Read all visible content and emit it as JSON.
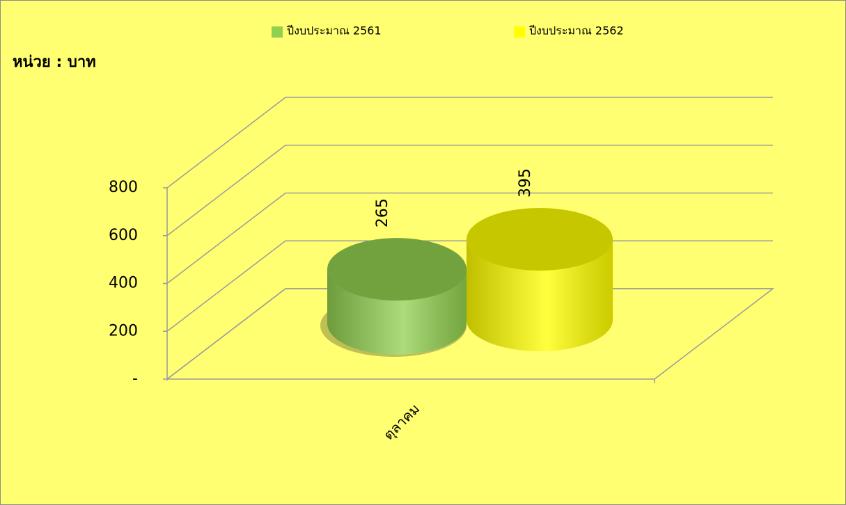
{
  "chart_data": {
    "type": "bar3d",
    "y_label": "หน่วย : บาท",
    "categories": [
      "ตุลาคม"
    ],
    "series": [
      {
        "name": "ปีงบประมาณ 2561",
        "color": "#92d050",
        "values": [
          265
        ]
      },
      {
        "name": "ปีงบประมาณ 2562",
        "color": "#ffff00",
        "values": [
          395
        ]
      }
    ],
    "ylim": [
      0,
      800
    ],
    "yticks": [
      {
        "value": 0,
        "label": "-"
      },
      200,
      400,
      600,
      800
    ],
    "grid": true,
    "legend": "top"
  }
}
